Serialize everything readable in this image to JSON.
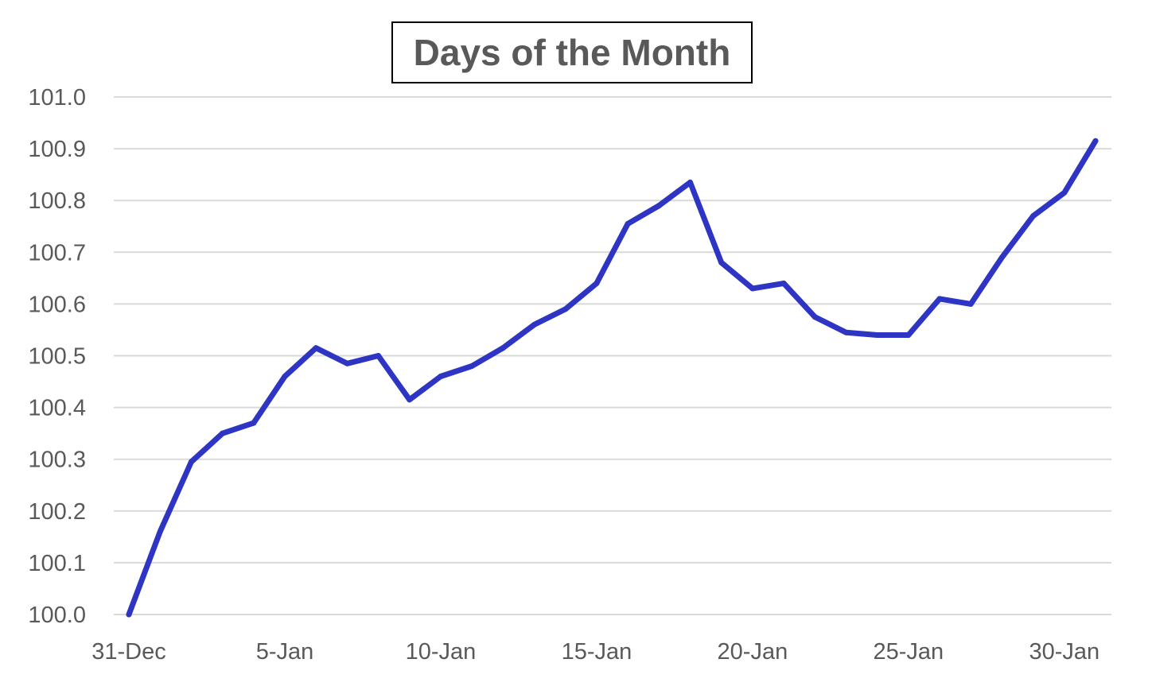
{
  "chart_data": {
    "type": "line",
    "title": "Days of the Month",
    "xlabel": "",
    "ylabel": "",
    "x_tick_labels": [
      "31-Dec",
      "5-Jan",
      "10-Jan",
      "15-Jan",
      "20-Jan",
      "25-Jan",
      "30-Jan"
    ],
    "x_tick_dates": [
      "2019-12-31",
      "2020-01-05",
      "2020-01-10",
      "2020-01-15",
      "2020-01-20",
      "2020-01-25",
      "2020-01-30"
    ],
    "y_tick_labels": [
      "100.0",
      "100.1",
      "100.2",
      "100.3",
      "100.4",
      "100.5",
      "100.6",
      "100.7",
      "100.8",
      "100.9",
      "101.0"
    ],
    "ylim": [
      100.0,
      101.0
    ],
    "xlim": [
      "2019-12-31",
      "2020-01-31"
    ],
    "grid": true,
    "legend": "none",
    "series": [
      {
        "color": "#2e35c4",
        "x": [
          "2019-12-31",
          "2020-01-01",
          "2020-01-02",
          "2020-01-03",
          "2020-01-04",
          "2020-01-05",
          "2020-01-06",
          "2020-01-07",
          "2020-01-08",
          "2020-01-09",
          "2020-01-10",
          "2020-01-11",
          "2020-01-12",
          "2020-01-13",
          "2020-01-14",
          "2020-01-15",
          "2020-01-16",
          "2020-01-17",
          "2020-01-18",
          "2020-01-19",
          "2020-01-20",
          "2020-01-21",
          "2020-01-22",
          "2020-01-23",
          "2020-01-24",
          "2020-01-25",
          "2020-01-26",
          "2020-01-27",
          "2020-01-28",
          "2020-01-29",
          "2020-01-30",
          "2020-01-31"
        ],
        "values": [
          100.0,
          100.16,
          100.295,
          100.35,
          100.37,
          100.46,
          100.515,
          100.485,
          100.5,
          100.415,
          100.46,
          100.48,
          100.515,
          100.56,
          100.59,
          100.64,
          100.755,
          100.79,
          100.835,
          100.68,
          100.63,
          100.64,
          100.575,
          100.545,
          100.54,
          100.54,
          100.61,
          100.6,
          100.69,
          100.77,
          100.815,
          100.915
        ]
      }
    ]
  }
}
